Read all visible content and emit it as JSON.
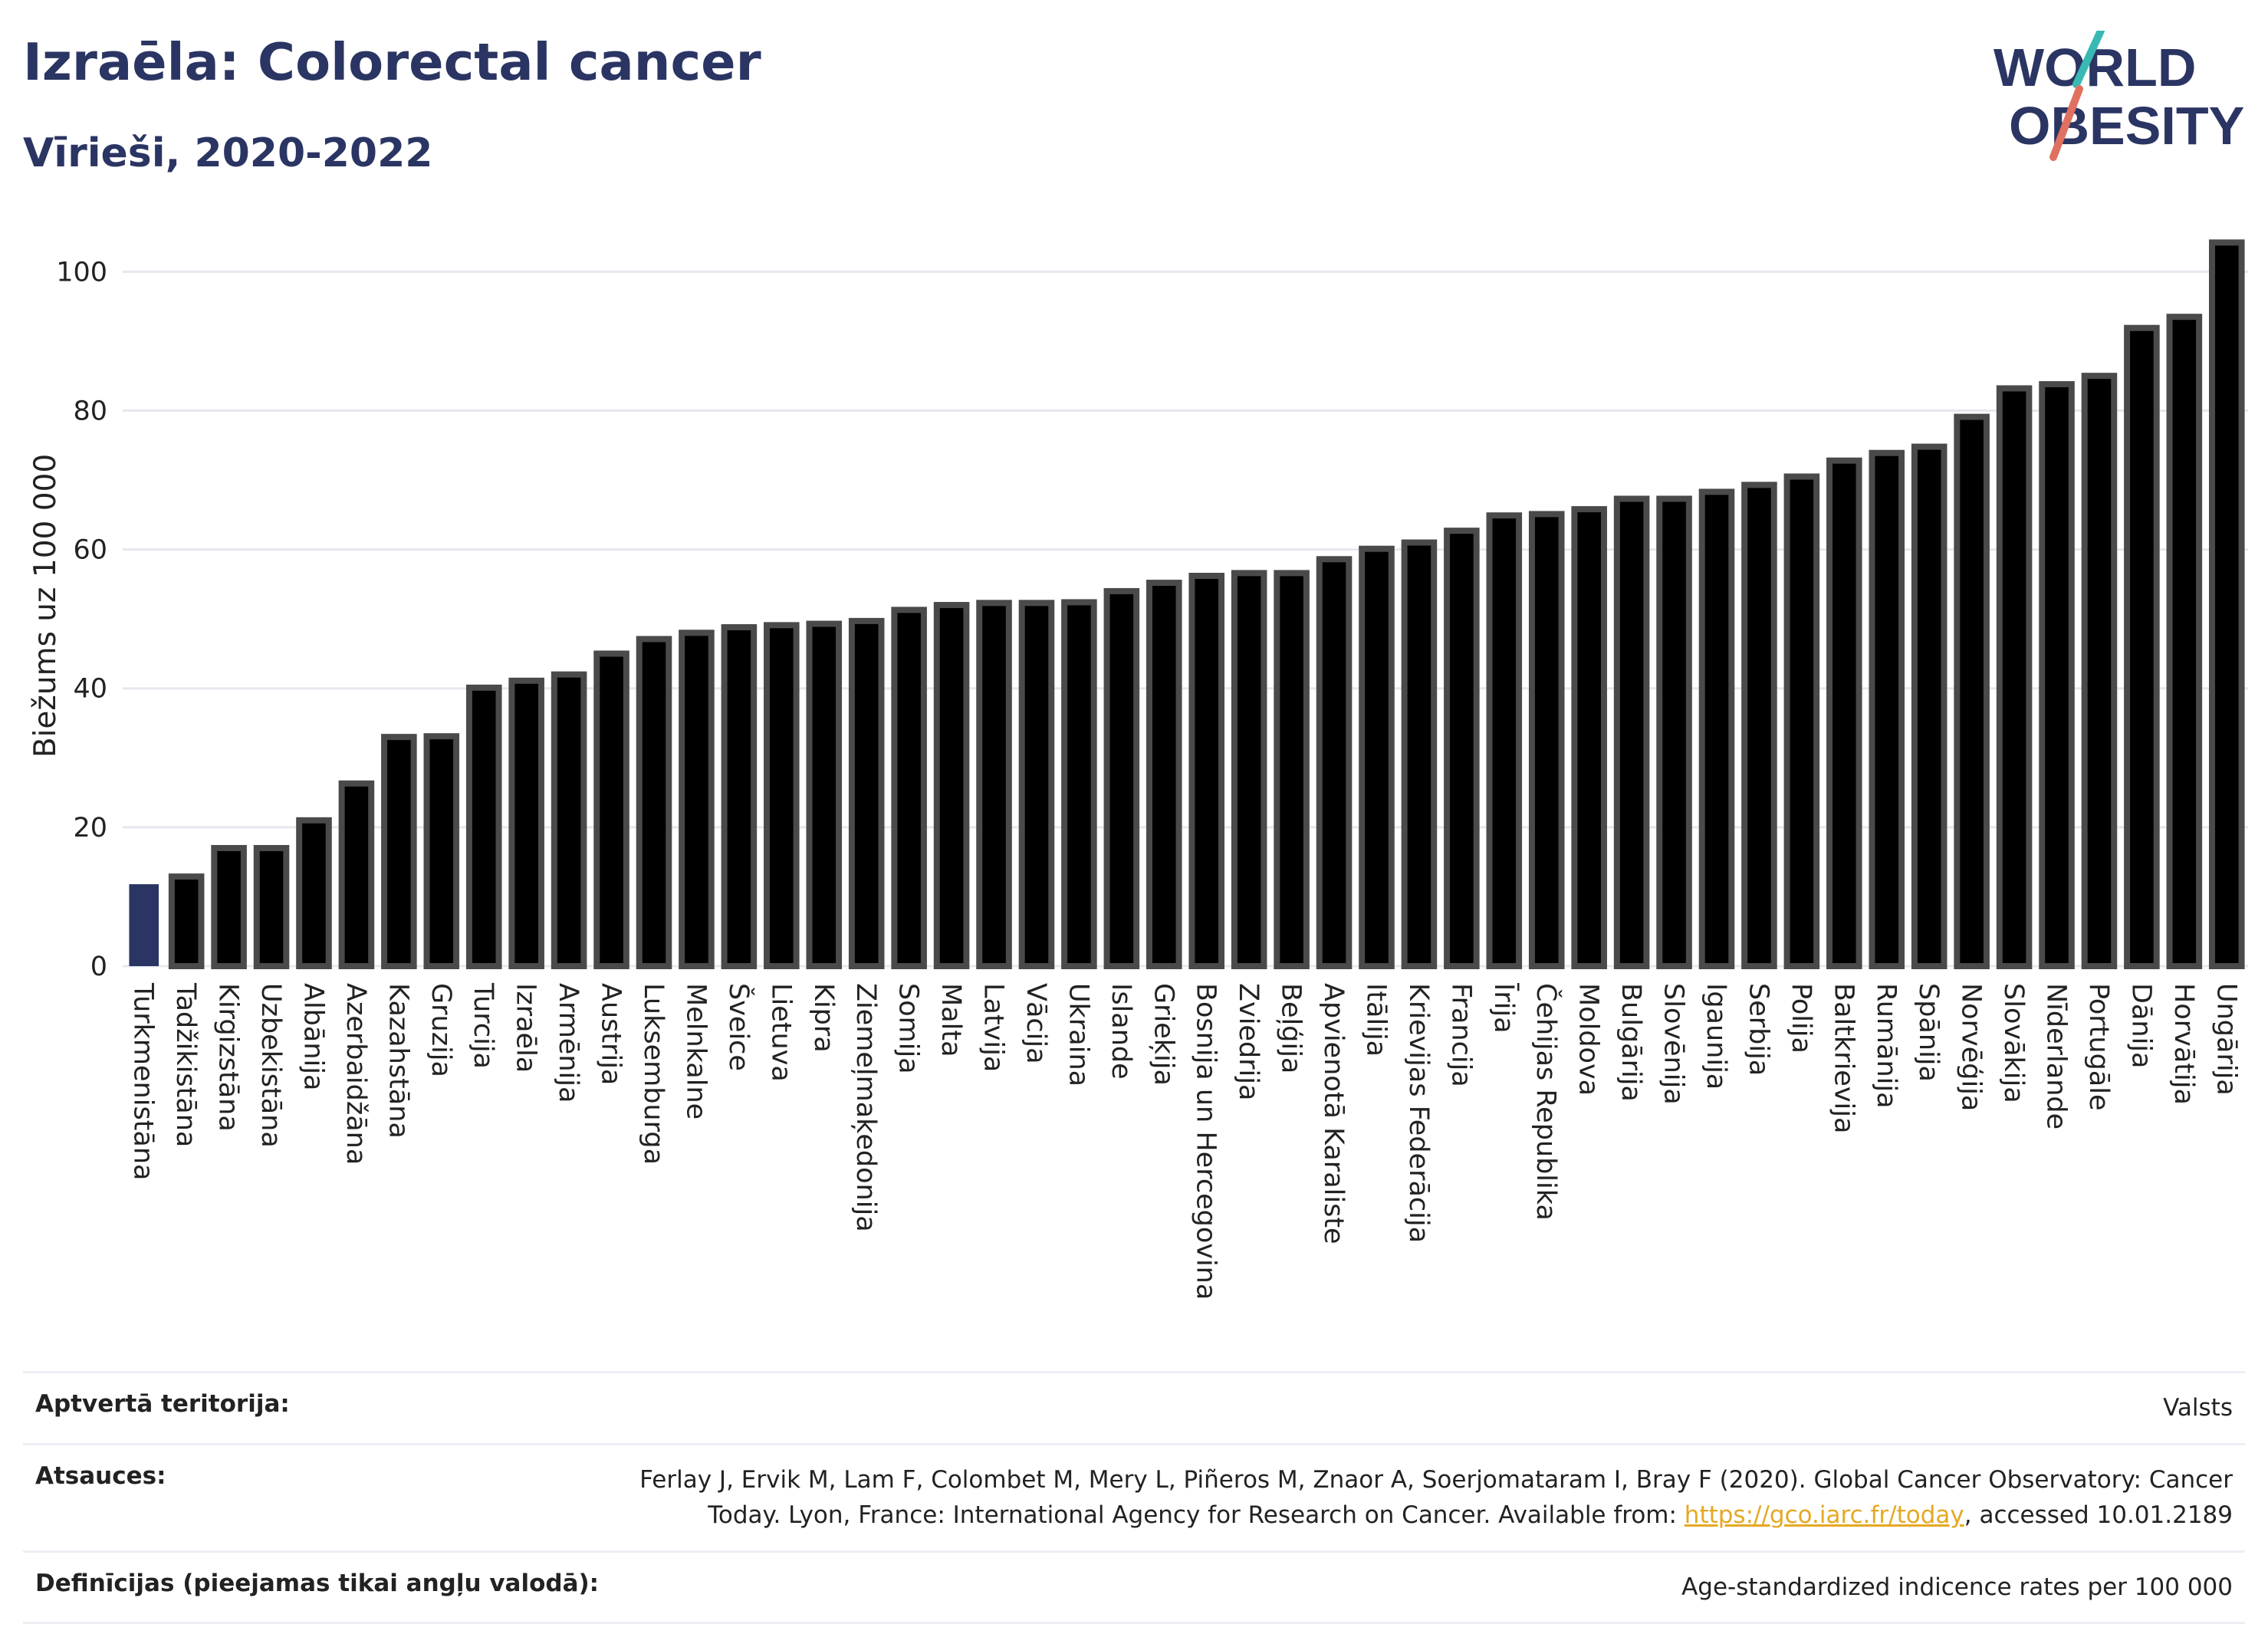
{
  "header": {
    "title": "Izraēla: Colorectal cancer",
    "subtitle": "Vīrieši, 2020-2022"
  },
  "logo": {
    "line1": "WORLD",
    "line2": "OBESITY",
    "colors": {
      "text": "#2b3563",
      "slash_a": "#e0705f",
      "slash_b": "#39b9b3"
    }
  },
  "chart_data": {
    "type": "bar",
    "ylabel": "Biežums uz 100 000",
    "ylim": [
      0,
      106
    ],
    "yticks": [
      0,
      20,
      40,
      60,
      80,
      100
    ],
    "grid": true,
    "highlight_color": "#2b3563",
    "bar_color": "#000000",
    "bar_outline": "#4a4a4a",
    "categories": [
      "Turkmenistāna",
      "Tadžikistāna",
      "Kirgizstāna",
      "Uzbekistāna",
      "Albānija",
      "Azerbaidžāna",
      "Kazahstāna",
      "Gruzija",
      "Turcija",
      "Izraēla",
      "Armēnija",
      "Austrija",
      "Luksemburga",
      "Melnkalne",
      "Šveice",
      "Lietuva",
      "Kipra",
      "Ziemeļmaķedonija",
      "Somija",
      "Malta",
      "Latvija",
      "Vācija",
      "Ukraina",
      "Islande",
      "Grieķija",
      "Bosnija un Hercegovina",
      "Zviedrija",
      "Beļģija",
      "Apvienotā Karaliste",
      "Itālija",
      "Krievijas Federācija",
      "Francija",
      "Īrija",
      "Čehijas Republika",
      "Moldova",
      "Bulgārija",
      "Slovēnija",
      "Igaunija",
      "Serbija",
      "Polija",
      "Baltkrievija",
      "Rumānija",
      "Spānija",
      "Norvēģija",
      "Slovākija",
      "Nīderlande",
      "Portugāle",
      "Dānija",
      "Horvātija",
      "Ungārija"
    ],
    "values": [
      11.8,
      12.9,
      17.0,
      17.0,
      21.0,
      26.3,
      33.0,
      33.1,
      40.1,
      41.1,
      42.0,
      45.0,
      47.1,
      48.0,
      48.8,
      49.1,
      49.3,
      49.7,
      51.3,
      52.0,
      52.3,
      52.3,
      52.4,
      54.0,
      55.2,
      56.2,
      56.6,
      56.6,
      58.6,
      60.1,
      61.0,
      62.7,
      64.9,
      65.1,
      65.8,
      67.3,
      67.3,
      68.3,
      69.3,
      70.5,
      72.8,
      73.9,
      74.8,
      79.1,
      83.2,
      83.8,
      85.0,
      91.9,
      93.5,
      104.2
    ],
    "highlight_index": 0
  },
  "footer": {
    "rows": [
      {
        "label": "Aptvertā teritorija:",
        "value": "Valsts"
      },
      {
        "label": "Atsauces:",
        "line1": "Ferlay J, Ervik M, Lam F, Colombet M, Mery L, Piñeros M, Znaor A, Soerjomataram I, Bray F (2020). Global Cancer Observatory: Cancer",
        "line2_pre": "Today. Lyon, France: International Agency for Research on Cancer. Available from: ",
        "link": "https://gco.iarc.fr/today",
        "line2_post": ", accessed 10.01.2189"
      },
      {
        "label": "Definīcijas (pieejamas tikai angļu valodā):",
        "value": "Age-standardized indicence rates per 100 000"
      }
    ]
  }
}
